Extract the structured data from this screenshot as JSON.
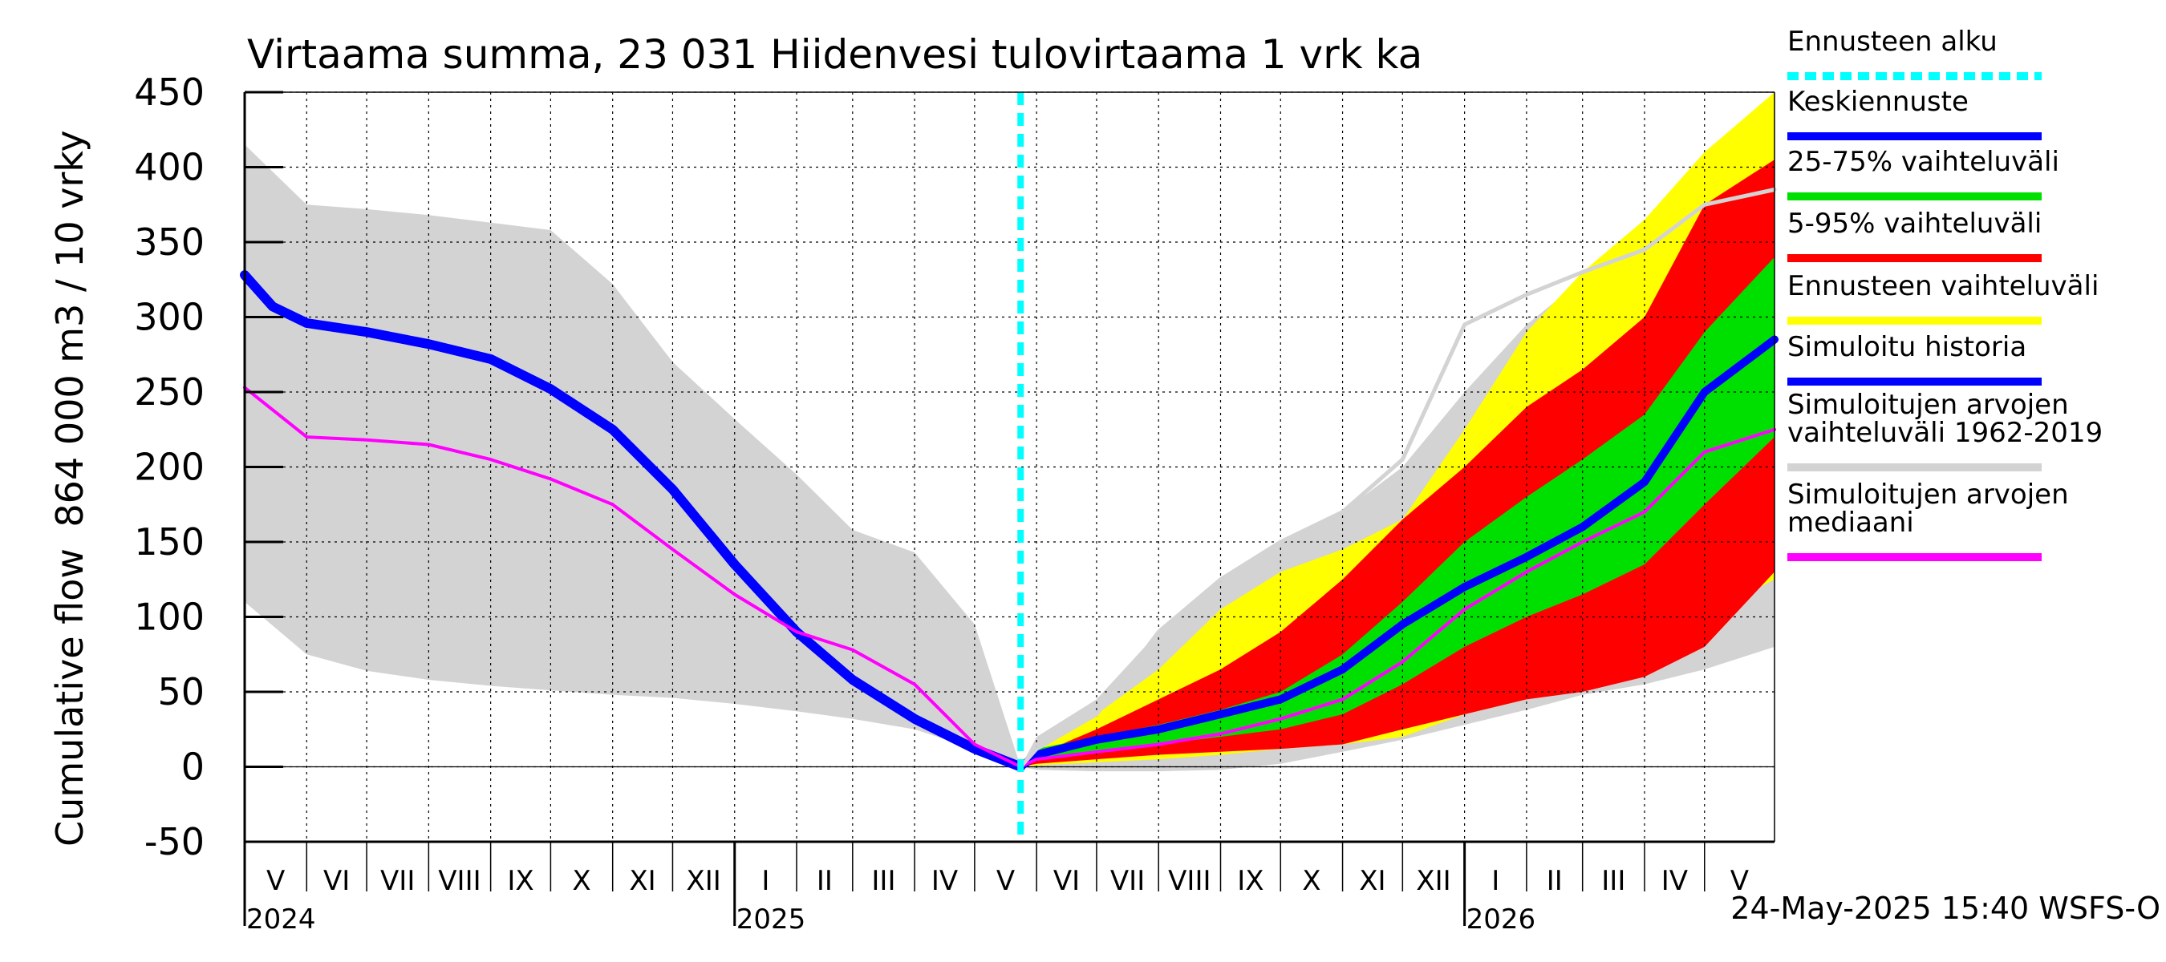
{
  "chart_data": {
    "type": "area",
    "title": "Virtaama summa, 23 031 Hiidenvesi tulovirtaama 1 vrk ka",
    "ylabel_lines": [
      "864 000 m3 / 10 vrky",
      "Cumulative flow"
    ],
    "ylim": [
      -50,
      450
    ],
    "yticks": [
      -50,
      0,
      50,
      100,
      150,
      200,
      250,
      300,
      350,
      400,
      450
    ],
    "yticklabels": [
      "-50",
      "0",
      "50",
      "100",
      "150",
      "200",
      "250",
      "300",
      "350",
      "400",
      "450"
    ],
    "xlim": [
      "2024-05-01",
      "2026-06-05"
    ],
    "grid": true,
    "forecast_start": "2025-05-24",
    "months": [
      {
        "label": "V",
        "start": "2024-05-01",
        "end": "2024-06-01"
      },
      {
        "label": "VI",
        "start": "2024-06-01",
        "end": "2024-07-01"
      },
      {
        "label": "VII",
        "start": "2024-07-01",
        "end": "2024-08-01"
      },
      {
        "label": "VIII",
        "start": "2024-08-01",
        "end": "2024-09-01"
      },
      {
        "label": "IX",
        "start": "2024-09-01",
        "end": "2024-10-01"
      },
      {
        "label": "X",
        "start": "2024-10-01",
        "end": "2024-11-01"
      },
      {
        "label": "XI",
        "start": "2024-11-01",
        "end": "2024-12-01"
      },
      {
        "label": "XII",
        "start": "2024-12-01",
        "end": "2025-01-01"
      },
      {
        "label": "I",
        "start": "2025-01-01",
        "end": "2025-02-01"
      },
      {
        "label": "II",
        "start": "2025-02-01",
        "end": "2025-03-01"
      },
      {
        "label": "III",
        "start": "2025-03-01",
        "end": "2025-04-01"
      },
      {
        "label": "IV",
        "start": "2025-04-01",
        "end": "2025-05-01"
      },
      {
        "label": "V",
        "start": "2025-05-01",
        "end": "2025-06-01"
      },
      {
        "label": "VI",
        "start": "2025-06-01",
        "end": "2025-07-01"
      },
      {
        "label": "VII",
        "start": "2025-07-01",
        "end": "2025-08-01"
      },
      {
        "label": "VIII",
        "start": "2025-08-01",
        "end": "2025-09-01"
      },
      {
        "label": "IX",
        "start": "2025-09-01",
        "end": "2025-10-01"
      },
      {
        "label": "X",
        "start": "2025-10-01",
        "end": "2025-11-01"
      },
      {
        "label": "XI",
        "start": "2025-11-01",
        "end": "2025-12-01"
      },
      {
        "label": "XII",
        "start": "2025-12-01",
        "end": "2026-01-01"
      },
      {
        "label": "I",
        "start": "2026-01-01",
        "end": "2026-02-01"
      },
      {
        "label": "II",
        "start": "2026-02-01",
        "end": "2026-03-01"
      },
      {
        "label": "III",
        "start": "2026-03-01",
        "end": "2026-04-01"
      },
      {
        "label": "IV",
        "start": "2026-04-01",
        "end": "2026-05-01"
      },
      {
        "label": "V",
        "start": "2026-05-01",
        "end": "2026-06-05"
      }
    ],
    "years": [
      {
        "label": "2024",
        "date": "2024-05-01"
      },
      {
        "label": "2025",
        "date": "2025-01-01"
      },
      {
        "label": "2026",
        "date": "2026-01-01"
      }
    ],
    "series": [
      {
        "name": "Simuloitujen arvojen vaihteluväli 1962-2019",
        "kind": "band",
        "color": "#d3d3d3",
        "x": [
          "2024-05-01",
          "2024-06-01",
          "2024-07-01",
          "2024-08-01",
          "2024-09-01",
          "2024-10-01",
          "2024-11-01",
          "2024-12-01",
          "2025-01-01",
          "2025-02-01",
          "2025-03-01",
          "2025-04-01",
          "2025-05-01",
          "2025-05-24",
          "2025-06-01",
          "2025-07-01",
          "2025-08-01",
          "2025-09-01",
          "2025-10-01",
          "2025-11-01",
          "2025-12-01",
          "2026-01-01",
          "2026-02-01",
          "2026-03-01",
          "2026-04-01",
          "2026-05-01",
          "2026-06-05"
        ],
        "low": [
          110,
          75,
          64,
          58,
          54,
          51,
          48,
          46,
          42,
          37,
          32,
          25,
          12,
          0,
          -2,
          -3,
          -3,
          -2,
          2,
          10,
          18,
          28,
          38,
          48,
          55,
          65,
          80
        ],
        "high": [
          415,
          375,
          372,
          368,
          363,
          358,
          322,
          270,
          232,
          195,
          158,
          143,
          95,
          0,
          20,
          45,
          90,
          125,
          150,
          170,
          200,
          250,
          295,
          325,
          345,
          370,
          400
        ]
      },
      {
        "name": "Ennusteen vaihteluväli",
        "kind": "band",
        "color": "#ffff00",
        "x": [
          "2025-05-24",
          "2025-06-01",
          "2025-07-01",
          "2025-08-01",
          "2025-09-01",
          "2025-10-01",
          "2025-11-01",
          "2025-12-01",
          "2026-01-01",
          "2026-02-01",
          "2026-03-01",
          "2026-04-01",
          "2026-05-01",
          "2026-06-05"
        ],
        "low": [
          0,
          1,
          3,
          5,
          8,
          12,
          15,
          20,
          35,
          45,
          55,
          65,
          100,
          125
        ],
        "high": [
          0,
          10,
          35,
          65,
          105,
          130,
          145,
          165,
          225,
          290,
          330,
          365,
          410,
          450
        ]
      },
      {
        "name": "5-95% vaihteluväli",
        "kind": "band",
        "color": "#ff0000",
        "x": [
          "2025-05-24",
          "2025-06-01",
          "2025-07-01",
          "2025-08-01",
          "2025-09-01",
          "2025-10-01",
          "2025-11-01",
          "2025-12-01",
          "2026-01-01",
          "2026-02-01",
          "2026-03-01",
          "2026-04-01",
          "2026-05-01",
          "2026-06-05"
        ],
        "low": [
          0,
          2,
          5,
          8,
          10,
          12,
          15,
          25,
          35,
          45,
          50,
          60,
          80,
          130
        ],
        "high": [
          0,
          8,
          25,
          45,
          65,
          90,
          125,
          165,
          200,
          240,
          265,
          300,
          375,
          405
        ]
      },
      {
        "name": "25-75% vaihteluväli",
        "kind": "band",
        "color": "#00e000",
        "x": [
          "2025-05-24",
          "2025-06-01",
          "2025-07-01",
          "2025-08-01",
          "2025-09-01",
          "2025-10-01",
          "2025-11-01",
          "2025-12-01",
          "2026-01-01",
          "2026-02-01",
          "2026-03-01",
          "2026-04-01",
          "2026-05-01",
          "2026-06-05"
        ],
        "low": [
          0,
          5,
          10,
          15,
          20,
          25,
          35,
          55,
          80,
          100,
          115,
          135,
          175,
          220
        ],
        "high": [
          0,
          12,
          20,
          28,
          38,
          50,
          75,
          110,
          150,
          180,
          205,
          235,
          290,
          340
        ]
      },
      {
        "name": "Keskiennuste",
        "kind": "line",
        "color": "#0000ff",
        "x": [
          "2025-05-24",
          "2025-06-01",
          "2025-07-01",
          "2025-08-01",
          "2025-09-01",
          "2025-10-01",
          "2025-11-01",
          "2025-12-01",
          "2026-01-01",
          "2026-02-01",
          "2026-03-01",
          "2026-04-01",
          "2026-05-01",
          "2026-06-05"
        ],
        "y": [
          0,
          8,
          18,
          25,
          35,
          45,
          65,
          95,
          120,
          140,
          160,
          190,
          250,
          285
        ]
      },
      {
        "name": "Simuloitu historia",
        "kind": "line",
        "color": "#0000ff",
        "x": [
          "2024-05-01",
          "2024-05-15",
          "2024-06-01",
          "2024-07-01",
          "2024-08-01",
          "2024-09-01",
          "2024-10-01",
          "2024-11-01",
          "2024-12-01",
          "2025-01-01",
          "2025-02-01",
          "2025-03-01",
          "2025-04-01",
          "2025-05-01",
          "2025-05-24"
        ],
        "y": [
          328,
          307,
          296,
          290,
          282,
          272,
          252,
          225,
          185,
          135,
          90,
          58,
          32,
          12,
          0
        ]
      },
      {
        "name": "Simuloitujen arvojen mediaani",
        "kind": "line",
        "color": "#ff00ff",
        "x": [
          "2024-05-01",
          "2024-06-01",
          "2024-07-01",
          "2024-08-01",
          "2024-09-01",
          "2024-10-01",
          "2024-11-01",
          "2024-12-01",
          "2025-01-01",
          "2025-02-01",
          "2025-03-01",
          "2025-04-01",
          "2025-05-01",
          "2025-05-24",
          "2025-06-01",
          "2025-07-01",
          "2025-08-01",
          "2025-09-01",
          "2025-10-01",
          "2025-11-01",
          "2025-12-01",
          "2026-01-01",
          "2026-02-01",
          "2026-03-01",
          "2026-04-01",
          "2026-05-01",
          "2026-06-05"
        ],
        "y": [
          253,
          220,
          218,
          215,
          205,
          192,
          175,
          145,
          115,
          90,
          78,
          55,
          15,
          0,
          5,
          10,
          15,
          22,
          32,
          45,
          70,
          105,
          130,
          150,
          170,
          210,
          225
        ]
      },
      {
        "name": "Simuloitujen arvojen vaihteluväli 1962-2019 (upper)",
        "kind": "line",
        "color": "#d3d3d3",
        "x": [
          "2025-05-24",
          "2025-06-01",
          "2025-07-01",
          "2025-08-01",
          "2025-09-01",
          "2025-10-01",
          "2025-11-01",
          "2025-12-01",
          "2026-01-01",
          "2026-02-01",
          "2026-03-01",
          "2026-04-01",
          "2026-05-01",
          "2026-06-05"
        ],
        "y": [
          0,
          12,
          35,
          90,
          125,
          150,
          170,
          205,
          295,
          315,
          330,
          345,
          375,
          385
        ]
      }
    ],
    "legend": [
      {
        "label": "Ennusteen alku",
        "color": "#00ffff",
        "style": "dotted"
      },
      {
        "label": "Keskiennuste",
        "color": "#0000ff",
        "style": "solid"
      },
      {
        "label": "25-75% vaihteluväli",
        "color": "#00e000",
        "style": "solid"
      },
      {
        "label": "5-95% vaihteluväli",
        "color": "#ff0000",
        "style": "solid"
      },
      {
        "label": "Ennusteen vaihteluväli",
        "color": "#ffff00",
        "style": "solid"
      },
      {
        "label": "Simuloitu historia",
        "color": "#0000ff",
        "style": "solid"
      },
      {
        "label": "Simuloitujen arvojen\nvaihteluväli 1962-2019",
        "color": "#d3d3d3",
        "style": "solid"
      },
      {
        "label": "Simuloitujen arvojen\nmediaani",
        "color": "#ff00ff",
        "style": "solid"
      }
    ],
    "legend_position": "right",
    "footer": "24-May-2025 15:40 WSFS-O"
  }
}
